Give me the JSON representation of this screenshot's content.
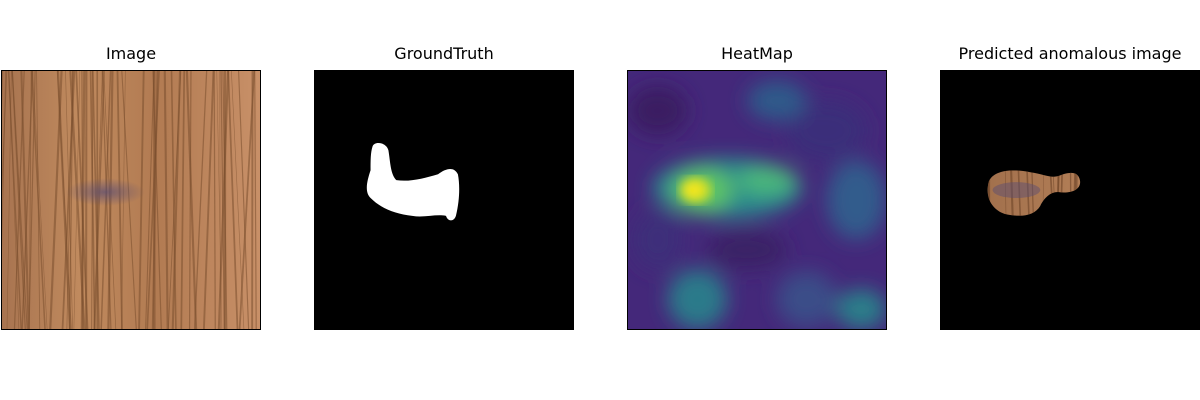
{
  "panels": [
    {
      "title": "Image"
    },
    {
      "title": "GroundTruth"
    },
    {
      "title": "HeatMap"
    },
    {
      "title": "Predicted anomalous image"
    }
  ],
  "colors": {
    "wood_base": "#b88257",
    "wood_dark": "#7a4e2d",
    "defect": "#6b5c78",
    "mask": "#ffffff",
    "background": "#000000",
    "heat_low": "#3e1e6e",
    "heat_mid": "#2b8c8c",
    "heat_high": "#f4e61e"
  }
}
